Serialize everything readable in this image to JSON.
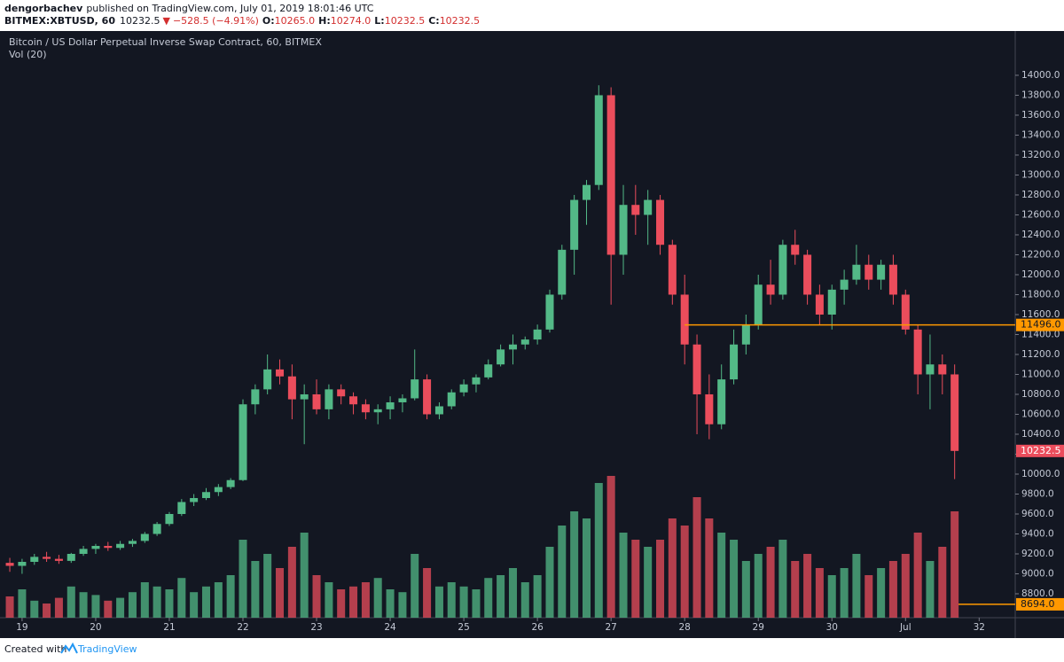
{
  "header": {
    "author": "dengorbachev",
    "published": "published on TradingView.com, July 01, 2019 18:01:46 UTC",
    "symbol": "BITMEX:XBTUSD, 60",
    "last": "10232.5",
    "arrow": "▼",
    "change": "−528.5 (−4.91%)",
    "ohlc": [
      {
        "label": "O:",
        "value": "10265.0"
      },
      {
        "label": "H:",
        "value": "10274.0"
      },
      {
        "label": "L:",
        "value": "10232.5"
      },
      {
        "label": "C:",
        "value": "10232.5"
      }
    ]
  },
  "chart_data": {
    "type": "candlestick",
    "title": "Bitcoin / US Dollar Perpetual Inverse Swap Contract, 60, BITMEX",
    "volume_title": "Vol (20)",
    "up_color": "#53b987",
    "down_color": "#eb4d5c",
    "level_color": "#ff9800",
    "x": [
      18.833,
      19,
      19.167,
      19.333,
      19.5,
      19.667,
      19.833,
      20,
      20.167,
      20.333,
      20.5,
      20.667,
      20.833,
      21,
      21.167,
      21.333,
      21.5,
      21.667,
      21.833,
      22,
      22.167,
      22.333,
      22.5,
      22.667,
      22.833,
      23,
      23.167,
      23.333,
      23.5,
      23.667,
      23.833,
      24,
      24.167,
      24.333,
      24.5,
      24.667,
      24.833,
      25,
      25.167,
      25.333,
      25.5,
      25.667,
      25.833,
      26,
      26.167,
      26.333,
      26.5,
      26.667,
      26.833,
      27,
      27.167,
      27.333,
      27.5,
      27.667,
      27.833,
      28,
      28.167,
      28.333,
      28.5,
      28.667,
      28.833,
      29,
      29.167,
      29.333,
      29.5,
      29.667,
      29.833,
      30,
      30.167,
      30.333,
      30.5,
      30.667,
      30.833,
      31,
      31.167,
      31.333,
      31.5,
      31.667
    ],
    "ohlc": [
      [
        9110,
        9160,
        9020,
        9080
      ],
      [
        9080,
        9150,
        9000,
        9120
      ],
      [
        9120,
        9200,
        9090,
        9170
      ],
      [
        9170,
        9220,
        9120,
        9150
      ],
      [
        9150,
        9190,
        9100,
        9130
      ],
      [
        9130,
        9210,
        9110,
        9200
      ],
      [
        9200,
        9280,
        9180,
        9250
      ],
      [
        9250,
        9300,
        9200,
        9280
      ],
      [
        9280,
        9320,
        9230,
        9260
      ],
      [
        9260,
        9330,
        9240,
        9300
      ],
      [
        9300,
        9350,
        9270,
        9330
      ],
      [
        9330,
        9420,
        9310,
        9400
      ],
      [
        9400,
        9520,
        9380,
        9500
      ],
      [
        9500,
        9620,
        9480,
        9600
      ],
      [
        9600,
        9750,
        9580,
        9720
      ],
      [
        9720,
        9800,
        9680,
        9760
      ],
      [
        9760,
        9860,
        9740,
        9820
      ],
      [
        9820,
        9900,
        9780,
        9870
      ],
      [
        9870,
        9960,
        9850,
        9940
      ],
      [
        9940,
        10750,
        9930,
        10700
      ],
      [
        10700,
        10900,
        10600,
        10850
      ],
      [
        10850,
        11200,
        10800,
        11050
      ],
      [
        11050,
        11150,
        10900,
        10980
      ],
      [
        10980,
        11100,
        10550,
        10750
      ],
      [
        10750,
        10900,
        10300,
        10800
      ],
      [
        10800,
        10950,
        10600,
        10650
      ],
      [
        10650,
        10900,
        10550,
        10850
      ],
      [
        10850,
        10900,
        10700,
        10780
      ],
      [
        10780,
        10820,
        10600,
        10700
      ],
      [
        10700,
        10750,
        10550,
        10620
      ],
      [
        10620,
        10700,
        10500,
        10650
      ],
      [
        10650,
        10780,
        10550,
        10720
      ],
      [
        10720,
        10800,
        10620,
        10760
      ],
      [
        10760,
        11250,
        10740,
        10950
      ],
      [
        10950,
        11000,
        10550,
        10600
      ],
      [
        10600,
        10720,
        10550,
        10680
      ],
      [
        10680,
        10850,
        10650,
        10820
      ],
      [
        10820,
        10950,
        10780,
        10900
      ],
      [
        10900,
        11000,
        10820,
        10970
      ],
      [
        10970,
        11150,
        10950,
        11100
      ],
      [
        11100,
        11300,
        11080,
        11250
      ],
      [
        11250,
        11400,
        11100,
        11300
      ],
      [
        11300,
        11380,
        11250,
        11350
      ],
      [
        11350,
        11500,
        11300,
        11450
      ],
      [
        11450,
        11850,
        11420,
        11800
      ],
      [
        11800,
        12300,
        11750,
        12250
      ],
      [
        12250,
        12800,
        12000,
        12750
      ],
      [
        12750,
        12950,
        12500,
        12900
      ],
      [
        12900,
        13900,
        12850,
        13800
      ],
      [
        13800,
        13880,
        11700,
        12200
      ],
      [
        12200,
        12900,
        12000,
        12700
      ],
      [
        12700,
        12900,
        12400,
        12600
      ],
      [
        12600,
        12850,
        12300,
        12750
      ],
      [
        12750,
        12800,
        12200,
        12300
      ],
      [
        12300,
        12350,
        11700,
        11800
      ],
      [
        11800,
        12000,
        11100,
        11300
      ],
      [
        11300,
        11400,
        10400,
        10800
      ],
      [
        10800,
        11000,
        10350,
        10500
      ],
      [
        10500,
        11100,
        10450,
        10950
      ],
      [
        10950,
        11450,
        10900,
        11300
      ],
      [
        11300,
        11600,
        11200,
        11500
      ],
      [
        11500,
        12000,
        11450,
        11900
      ],
      [
        11900,
        12150,
        11700,
        11800
      ],
      [
        11800,
        12350,
        11750,
        12300
      ],
      [
        12300,
        12450,
        12100,
        12200
      ],
      [
        12200,
        12250,
        11700,
        11800
      ],
      [
        11800,
        11900,
        11500,
        11600
      ],
      [
        11600,
        11900,
        11450,
        11850
      ],
      [
        11850,
        12050,
        11700,
        11950
      ],
      [
        11950,
        12300,
        11900,
        12100
      ],
      [
        12100,
        12200,
        11850,
        11950
      ],
      [
        11950,
        12150,
        11850,
        12100
      ],
      [
        12100,
        12200,
        11700,
        11800
      ],
      [
        11800,
        11850,
        11400,
        11450
      ],
      [
        11450,
        11500,
        10800,
        11000
      ],
      [
        11000,
        11400,
        10650,
        11100
      ],
      [
        11100,
        11200,
        10800,
        11000
      ],
      [
        11000,
        11100,
        9950,
        10232.5
      ]
    ],
    "volume": [
      15,
      20,
      12,
      10,
      14,
      22,
      18,
      16,
      12,
      14,
      18,
      25,
      22,
      20,
      28,
      18,
      22,
      25,
      30,
      55,
      40,
      45,
      35,
      50,
      60,
      30,
      25,
      20,
      22,
      25,
      28,
      20,
      18,
      45,
      35,
      22,
      25,
      22,
      20,
      28,
      30,
      35,
      25,
      30,
      50,
      65,
      75,
      70,
      95,
      100,
      60,
      55,
      50,
      55,
      70,
      65,
      85,
      70,
      60,
      55,
      40,
      45,
      50,
      55,
      40,
      45,
      35,
      30,
      35,
      45,
      30,
      35,
      40,
      45,
      60,
      40,
      50,
      75
    ],
    "vlim": [
      0,
      100
    ],
    "xlim": [
      18.7,
      32.49
    ],
    "xticks": [
      19,
      20,
      21,
      22,
      23,
      24,
      25,
      26,
      27,
      28,
      29,
      30,
      {
        "value": 31,
        "label": "Jul"
      },
      32
    ],
    "ylim": [
      8560,
      14444
    ],
    "yticks": [
      {
        "value": 8800,
        "label": "8800.0"
      },
      {
        "value": 9000,
        "label": "9000.0"
      },
      {
        "value": 9200,
        "label": "9200.0"
      },
      {
        "value": 9400,
        "label": "9400.0"
      },
      {
        "value": 9600,
        "label": "9600.0"
      },
      {
        "value": 9800,
        "label": "9800.0"
      },
      {
        "value": 10000,
        "label": "10000.0"
      },
      {
        "value": 10200,
        "label": "10200.0"
      },
      {
        "value": 10400,
        "label": "10400.0"
      },
      {
        "value": 10600,
        "label": "10600.0"
      },
      {
        "value": 10800,
        "label": "10800.0"
      },
      {
        "value": 11000,
        "label": "11000.0"
      },
      {
        "value": 11200,
        "label": "11200.0"
      },
      {
        "value": 11400,
        "label": "11400.0"
      },
      {
        "value": 11600,
        "label": "11600.0"
      },
      {
        "value": 11800,
        "label": "11800.0"
      },
      {
        "value": 12000,
        "label": "12000.0"
      },
      {
        "value": 12200,
        "label": "12200.0"
      },
      {
        "value": 12400,
        "label": "12400.0"
      },
      {
        "value": 12600,
        "label": "12600.0"
      },
      {
        "value": 12800,
        "label": "12800.0"
      },
      {
        "value": 13000,
        "label": "13000.0"
      },
      {
        "value": 13200,
        "label": "13200.0"
      },
      {
        "value": 13400,
        "label": "13400.0"
      },
      {
        "value": 13600,
        "label": "13600.0"
      },
      {
        "value": 13800,
        "label": "13800.0"
      },
      {
        "value": 14000,
        "label": "14000.0"
      }
    ],
    "grid": false,
    "levels": [
      {
        "value": 11496,
        "label": "11496.0",
        "from": 28
      },
      {
        "value": 8694,
        "label": "8694.0",
        "from": 31.72
      }
    ],
    "last_price": {
      "value": 10232.5,
      "label": "10232.5"
    }
  },
  "footer": {
    "text": "Created with",
    "brand": "TradingView"
  }
}
